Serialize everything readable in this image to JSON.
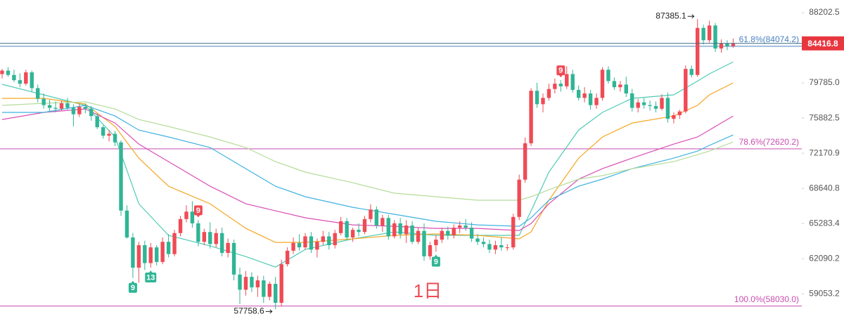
{
  "chart_data": {
    "type": "candlestick",
    "watermark": "1日",
    "log_scale": true,
    "xlim": [
      -0.355,
      134.55
    ],
    "ylim": [
      55843,
      89808
    ],
    "yticks": [
      88202.5,
      {
        "value": 79785.0,
        "label": "79785.0"
      },
      75882.5,
      72170.9,
      68640.8,
      65283.4,
      62090.2,
      59053.2
    ],
    "up_color": "#ef4b55",
    "down_color": "#2fb595",
    "open": [
      80800,
      81200,
      80700,
      80100,
      79700,
      81000,
      79200,
      78000,
      77300,
      77000,
      76900,
      77500,
      77000,
      76300,
      77100,
      76900,
      76100,
      74900,
      74000,
      74200,
      73300,
      66500,
      64000,
      61300,
      63300,
      61700,
      63100,
      61800,
      63600,
      62500,
      64400,
      65700,
      66400,
      65300,
      63600,
      64500,
      63400,
      64400,
      62600,
      63500,
      60700,
      59400,
      60500,
      59600,
      60200,
      58800,
      59900,
      58300,
      61600,
      62800,
      63500,
      63100,
      64100,
      62900,
      63600,
      64100,
      63300,
      64400,
      65500,
      64000,
      64700,
      64500,
      65700,
      66600,
      65100,
      65800,
      64100,
      65300,
      64300,
      65100,
      63600,
      64600,
      62300,
      63300,
      63800,
      64600,
      64200,
      64900,
      65100,
      64900,
      63900,
      63600,
      63400,
      62900,
      63300,
      63100,
      63100,
      65900,
      69500,
      73200,
      78900,
      77400,
      78100,
      79100,
      79700,
      79400,
      80800,
      79000,
      78100,
      78600,
      77300,
      78100,
      81300,
      80000,
      79300,
      79600,
      78600,
      77000,
      77600,
      77300,
      77200,
      76900,
      78100,
      75800,
      76200,
      76600,
      81400,
      80700,
      86300,
      84800,
      86600,
      83800,
      84400,
      84100
    ],
    "high": [
      81400,
      81600,
      81300,
      80900,
      81300,
      81200,
      79600,
      78600,
      77900,
      77700,
      77800,
      78100,
      77400,
      77400,
      77500,
      77200,
      76400,
      75100,
      74600,
      74500,
      73500,
      67000,
      64400,
      63600,
      63700,
      63500,
      63300,
      64000,
      64300,
      64700,
      66000,
      67000,
      67400,
      65600,
      64800,
      65400,
      64800,
      64900,
      63900,
      63800,
      61300,
      61000,
      60900,
      60600,
      60600,
      60100,
      60500,
      62000,
      63100,
      64000,
      64300,
      64400,
      64500,
      63900,
      64600,
      64500,
      64700,
      65900,
      65800,
      64900,
      65300,
      66000,
      67100,
      66900,
      66100,
      66100,
      65600,
      65800,
      65600,
      65500,
      64900,
      65300,
      63600,
      64200,
      64900,
      65000,
      65200,
      65500,
      65700,
      65400,
      64300,
      64000,
      63800,
      63700,
      64000,
      63400,
      66200,
      70000,
      73800,
      79200,
      79800,
      78600,
      79700,
      80300,
      80100,
      81700,
      81300,
      79500,
      79300,
      79000,
      78600,
      81600,
      81700,
      80400,
      80000,
      80500,
      79100,
      78000,
      78100,
      77800,
      77700,
      78500,
      78700,
      76500,
      76800,
      81800,
      81800,
      87385.1,
      86700,
      87200,
      86900,
      84900,
      84800,
      85000
    ],
    "low": [
      80300,
      80500,
      79900,
      79300,
      79500,
      78800,
      77600,
      76900,
      76600,
      76500,
      76700,
      76800,
      75000,
      76000,
      76400,
      75600,
      74700,
      73700,
      73400,
      72900,
      66000,
      63900,
      60400,
      60000,
      61100,
      61300,
      61500,
      61600,
      62200,
      62300,
      64100,
      65400,
      64900,
      63200,
      63300,
      63000,
      63100,
      62300,
      62200,
      60200,
      58200,
      58900,
      59200,
      58800,
      58300,
      58500,
      57758.6,
      58000,
      61400,
      62500,
      62800,
      62900,
      62600,
      62200,
      63300,
      62900,
      63000,
      64200,
      63800,
      63600,
      64100,
      64300,
      65400,
      64800,
      64500,
      63800,
      63900,
      63900,
      63500,
      63400,
      63400,
      61900,
      62000,
      62700,
      63500,
      63800,
      63900,
      64400,
      64600,
      63600,
      63300,
      63100,
      62600,
      62500,
      62800,
      62800,
      62900,
      65600,
      69200,
      72900,
      77000,
      76500,
      77800,
      78600,
      78800,
      79100,
      78700,
      77800,
      77600,
      76800,
      76900,
      77800,
      79700,
      79000,
      78800,
      78200,
      76600,
      76500,
      76900,
      76700,
      76500,
      76700,
      75400,
      75300,
      75800,
      76400,
      80400,
      80500,
      84300,
      84500,
      83400,
      83300,
      83600,
      83900
    ],
    "close": [
      81200,
      80700,
      80100,
      79700,
      81000,
      79200,
      78000,
      77300,
      77000,
      76900,
      77500,
      77000,
      76300,
      77100,
      76900,
      76100,
      74900,
      74000,
      74200,
      73300,
      66500,
      64000,
      61300,
      63300,
      61700,
      63100,
      61800,
      63600,
      62500,
      64400,
      65700,
      66400,
      65300,
      63600,
      64500,
      63400,
      64400,
      62600,
      63500,
      60700,
      59400,
      60500,
      59600,
      60200,
      58800,
      59900,
      58300,
      61600,
      62800,
      63500,
      63100,
      64100,
      62900,
      63600,
      64100,
      63300,
      64400,
      65500,
      64000,
      64700,
      64500,
      65700,
      66600,
      65100,
      65800,
      64100,
      65300,
      64300,
      65100,
      63600,
      64600,
      62300,
      63300,
      63800,
      64600,
      64200,
      64900,
      65100,
      64900,
      63900,
      63600,
      63400,
      62900,
      63300,
      63100,
      63100,
      65900,
      69500,
      73200,
      78900,
      77400,
      78100,
      79100,
      79700,
      79400,
      80800,
      79000,
      78100,
      78600,
      77300,
      78100,
      81300,
      80000,
      79300,
      79600,
      78600,
      77000,
      77600,
      77300,
      77200,
      76900,
      78100,
      75800,
      76200,
      76600,
      81400,
      80700,
      86300,
      84800,
      86600,
      83800,
      84400,
      84100,
      84416.8
    ],
    "ma_x": [
      0,
      7,
      14,
      19,
      23,
      28,
      35,
      41,
      46,
      51,
      59,
      66,
      73,
      80,
      87,
      89,
      92,
      97,
      101,
      106,
      113,
      117,
      119,
      123
    ],
    "series": [
      {
        "color": "#4fcbb5",
        "values": [
          79630,
          78440,
          77270,
          73860,
          67150,
          64190,
          63230,
          62280,
          61350,
          62910,
          63870,
          64510,
          64190,
          64190,
          64190,
          66480,
          70250,
          74600,
          76500,
          78050,
          78440,
          79990,
          80830,
          82220
        ]
      },
      {
        "color": "#f5a623",
        "values": [
          78050,
          78050,
          77420,
          74980,
          71670,
          68850,
          67150,
          64830,
          63550,
          63550,
          63870,
          64190,
          64320,
          64190,
          63870,
          64510,
          67490,
          71670,
          73860,
          75350,
          76110,
          77270,
          78440,
          79790
        ]
      },
      {
        "color": "#d94fb5",
        "values": [
          75730,
          76500,
          76880,
          75350,
          73120,
          71310,
          68850,
          67150,
          66480,
          65820,
          65160,
          65030,
          64830,
          64830,
          64640,
          65290,
          67150,
          69550,
          70600,
          71670,
          73120,
          73860,
          74600,
          76110
        ]
      },
      {
        "color": "#3fb2e0",
        "values": [
          76500,
          76500,
          77270,
          76110,
          74600,
          73860,
          72760,
          70600,
          68850,
          67830,
          66810,
          66150,
          65490,
          65160,
          65030,
          65820,
          67490,
          68850,
          69550,
          70600,
          71670,
          72390,
          72980,
          74080
        ]
      },
      {
        "color": "#b5dc9a",
        "values": [
          77270,
          77500,
          77660,
          76880,
          75730,
          74980,
          73860,
          72760,
          71310,
          70250,
          69200,
          68170,
          67830,
          67490,
          67490,
          67830,
          68510,
          69550,
          69900,
          70600,
          71310,
          72030,
          72390,
          73340
        ]
      }
    ],
    "levels": [
      {
        "value": 84074.2,
        "label": "61.8%(84074.2)",
        "color": "#4a7fc1"
      },
      {
        "value": 72620.2,
        "label": "78.6%(72620.2)",
        "color": "#c84db0"
      },
      {
        "value": 58030.0,
        "label": "100.0%(58030.0)",
        "color": "#c84db0"
      }
    ],
    "price_line": {
      "value": 84416.8,
      "color": "#e8363f"
    },
    "extremes": [
      87385.1,
      57758.6
    ],
    "markers": [
      {
        "text": 9,
        "x": 22,
        "color": "#2fb595",
        "side": "below"
      },
      {
        "text": 13,
        "x": 25,
        "color": "#2fb595",
        "side": "below"
      },
      {
        "text": 9,
        "x": 33,
        "color": "#ef4b55",
        "side": "above"
      },
      {
        "text": 9,
        "x": 73,
        "color": "#2fb595",
        "side": "below"
      },
      {
        "text": 9,
        "x": 94,
        "color": "#ef4b55",
        "side": "above"
      }
    ]
  }
}
